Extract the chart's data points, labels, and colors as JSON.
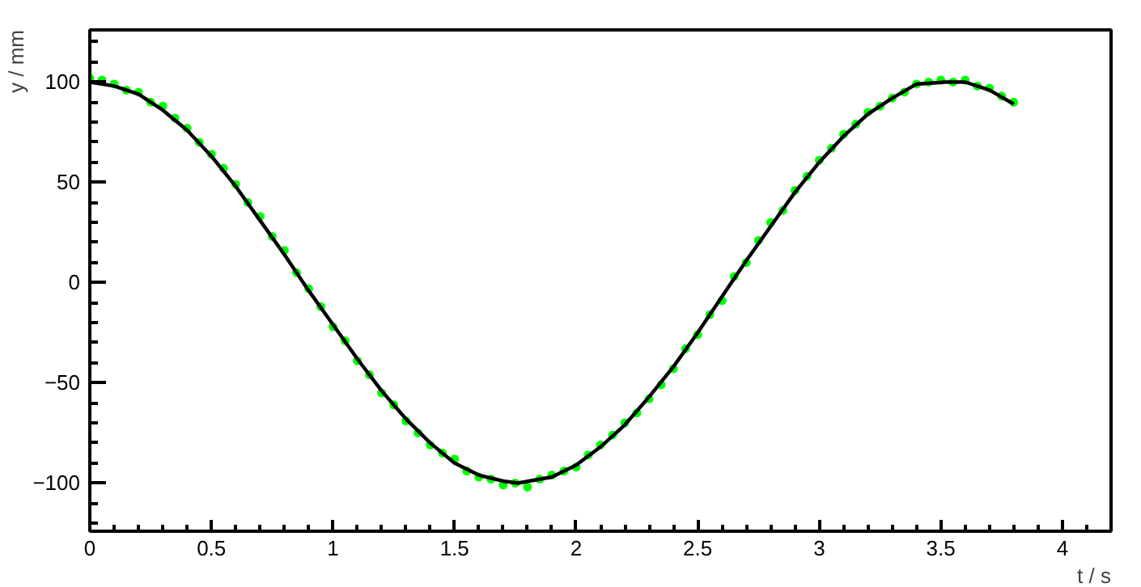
{
  "chart_data": {
    "type": "scatter",
    "xlabel": "t / s",
    "ylabel": "y / mm",
    "xlim": [
      0,
      4.2
    ],
    "ylim": [
      -124,
      126
    ],
    "xticks": [
      0,
      0.5,
      1,
      1.5,
      2,
      2.5,
      3,
      3.5,
      4
    ],
    "yticks": [
      -100,
      -50,
      0,
      50,
      100
    ],
    "grid": false,
    "marker": "circle",
    "series": [
      {
        "color": "#00ff00",
        "x": [
          0,
          0.05,
          0.1,
          0.15,
          0.2,
          0.25,
          0.3,
          0.35,
          0.4,
          0.45,
          0.5,
          0.55,
          0.6,
          0.65,
          0.7,
          0.75,
          0.8,
          0.85,
          0.9,
          0.95,
          1.0,
          1.05,
          1.1,
          1.15,
          1.2,
          1.25,
          1.3,
          1.35,
          1.4,
          1.45,
          1.5,
          1.55,
          1.6,
          1.65,
          1.7,
          1.75,
          1.8,
          1.85,
          1.9,
          1.95,
          2.0,
          2.05,
          2.1,
          2.15,
          2.2,
          2.25,
          2.3,
          2.35,
          2.4,
          2.45,
          2.5,
          2.55,
          2.6,
          2.65,
          2.7,
          2.75,
          2.8,
          2.85,
          2.9,
          2.95,
          3.0,
          3.05,
          3.1,
          3.15,
          3.2,
          3.25,
          3.3,
          3.35,
          3.4,
          3.45,
          3.5,
          3.55,
          3.6,
          3.65,
          3.7,
          3.75,
          3.8
        ],
        "values": [
          102,
          101,
          99,
          96,
          95,
          90,
          88,
          82,
          77,
          70,
          64,
          57,
          49,
          40,
          33,
          23,
          16,
          5,
          -3,
          -12,
          -22,
          -29,
          -39,
          -46,
          -55,
          -61,
          -69,
          -75,
          -81,
          -85,
          -88,
          -94,
          -97,
          -98,
          -101,
          -100,
          -102,
          -98,
          -96,
          -94,
          -92,
          -86,
          -81,
          -76,
          -70,
          -65,
          -58,
          -51,
          -43,
          -33,
          -26,
          -16,
          -9,
          3,
          10,
          21,
          30,
          36,
          46,
          53,
          61,
          67,
          74,
          79,
          85,
          88,
          92,
          95,
          99,
          100,
          101,
          100,
          101,
          98,
          97,
          93,
          90
        ]
      },
      {
        "type": "line",
        "color": "#000000",
        "marker": "none",
        "line_style": "solid",
        "x": [
          0,
          0.1,
          0.2,
          0.3,
          0.4,
          0.5,
          0.6,
          0.7,
          0.8,
          0.9,
          1.0,
          1.1,
          1.2,
          1.3,
          1.4,
          1.5,
          1.6,
          1.7,
          1.76,
          1.9,
          2.0,
          2.1,
          2.2,
          2.3,
          2.4,
          2.5,
          2.6,
          2.7,
          2.8,
          2.9,
          3.0,
          3.1,
          3.2,
          3.3,
          3.4,
          3.52,
          3.6,
          3.7,
          3.8
        ],
        "values": [
          100,
          98,
          94,
          86,
          76,
          63,
          48,
          31,
          14,
          -4,
          -21,
          -38,
          -54,
          -68,
          -80,
          -90,
          -96,
          -99,
          -100,
          -97,
          -91,
          -82,
          -71,
          -57,
          -42,
          -25,
          -7,
          11,
          28,
          45,
          60,
          73,
          84,
          92,
          99,
          100,
          100,
          96,
          89
        ]
      }
    ]
  }
}
